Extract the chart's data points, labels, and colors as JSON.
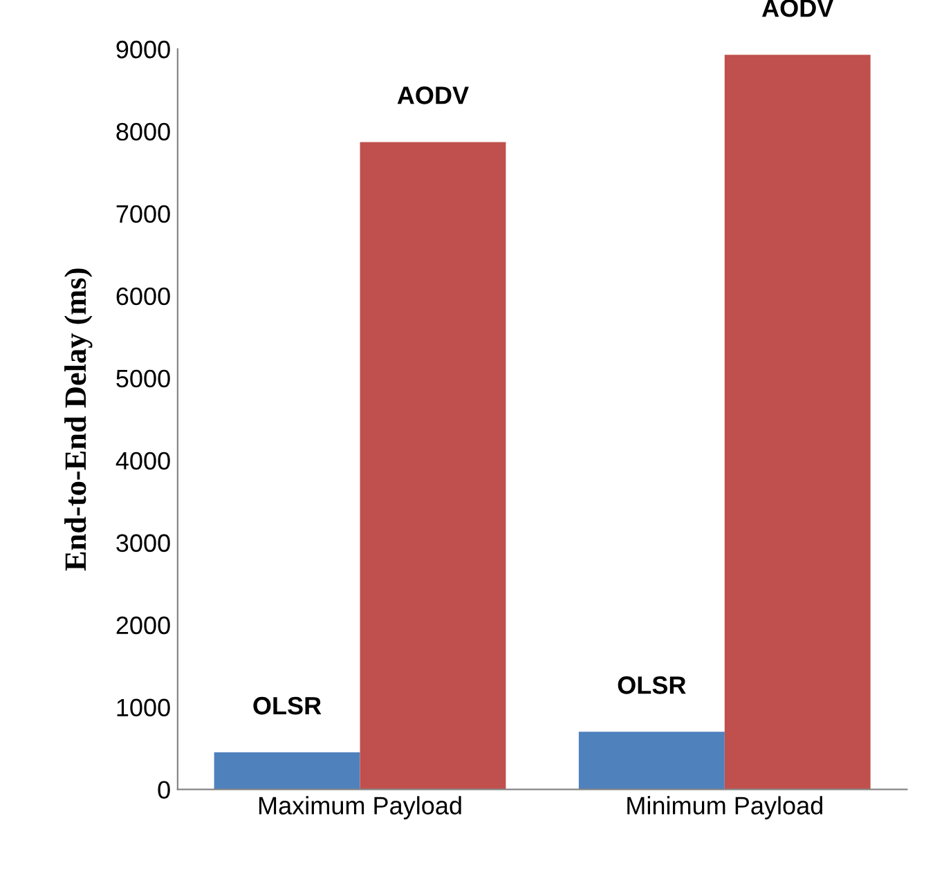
{
  "chart_data": {
    "type": "bar",
    "ylabel": "End-to-End Delay (ms)",
    "categories": [
      "Maximum Payload",
      "Minimum Payload"
    ],
    "series": [
      {
        "name": "OLSR",
        "color": "#4f81bd",
        "values": [
          450,
          700
        ]
      },
      {
        "name": "AODV",
        "color": "#c0504d",
        "values": [
          7870,
          8930
        ]
      }
    ],
    "ylim": [
      0,
      9000
    ],
    "yticks": [
      0,
      1000,
      2000,
      3000,
      4000,
      5000,
      6000,
      7000,
      8000,
      9000
    ],
    "grid": false,
    "legend": false
  }
}
